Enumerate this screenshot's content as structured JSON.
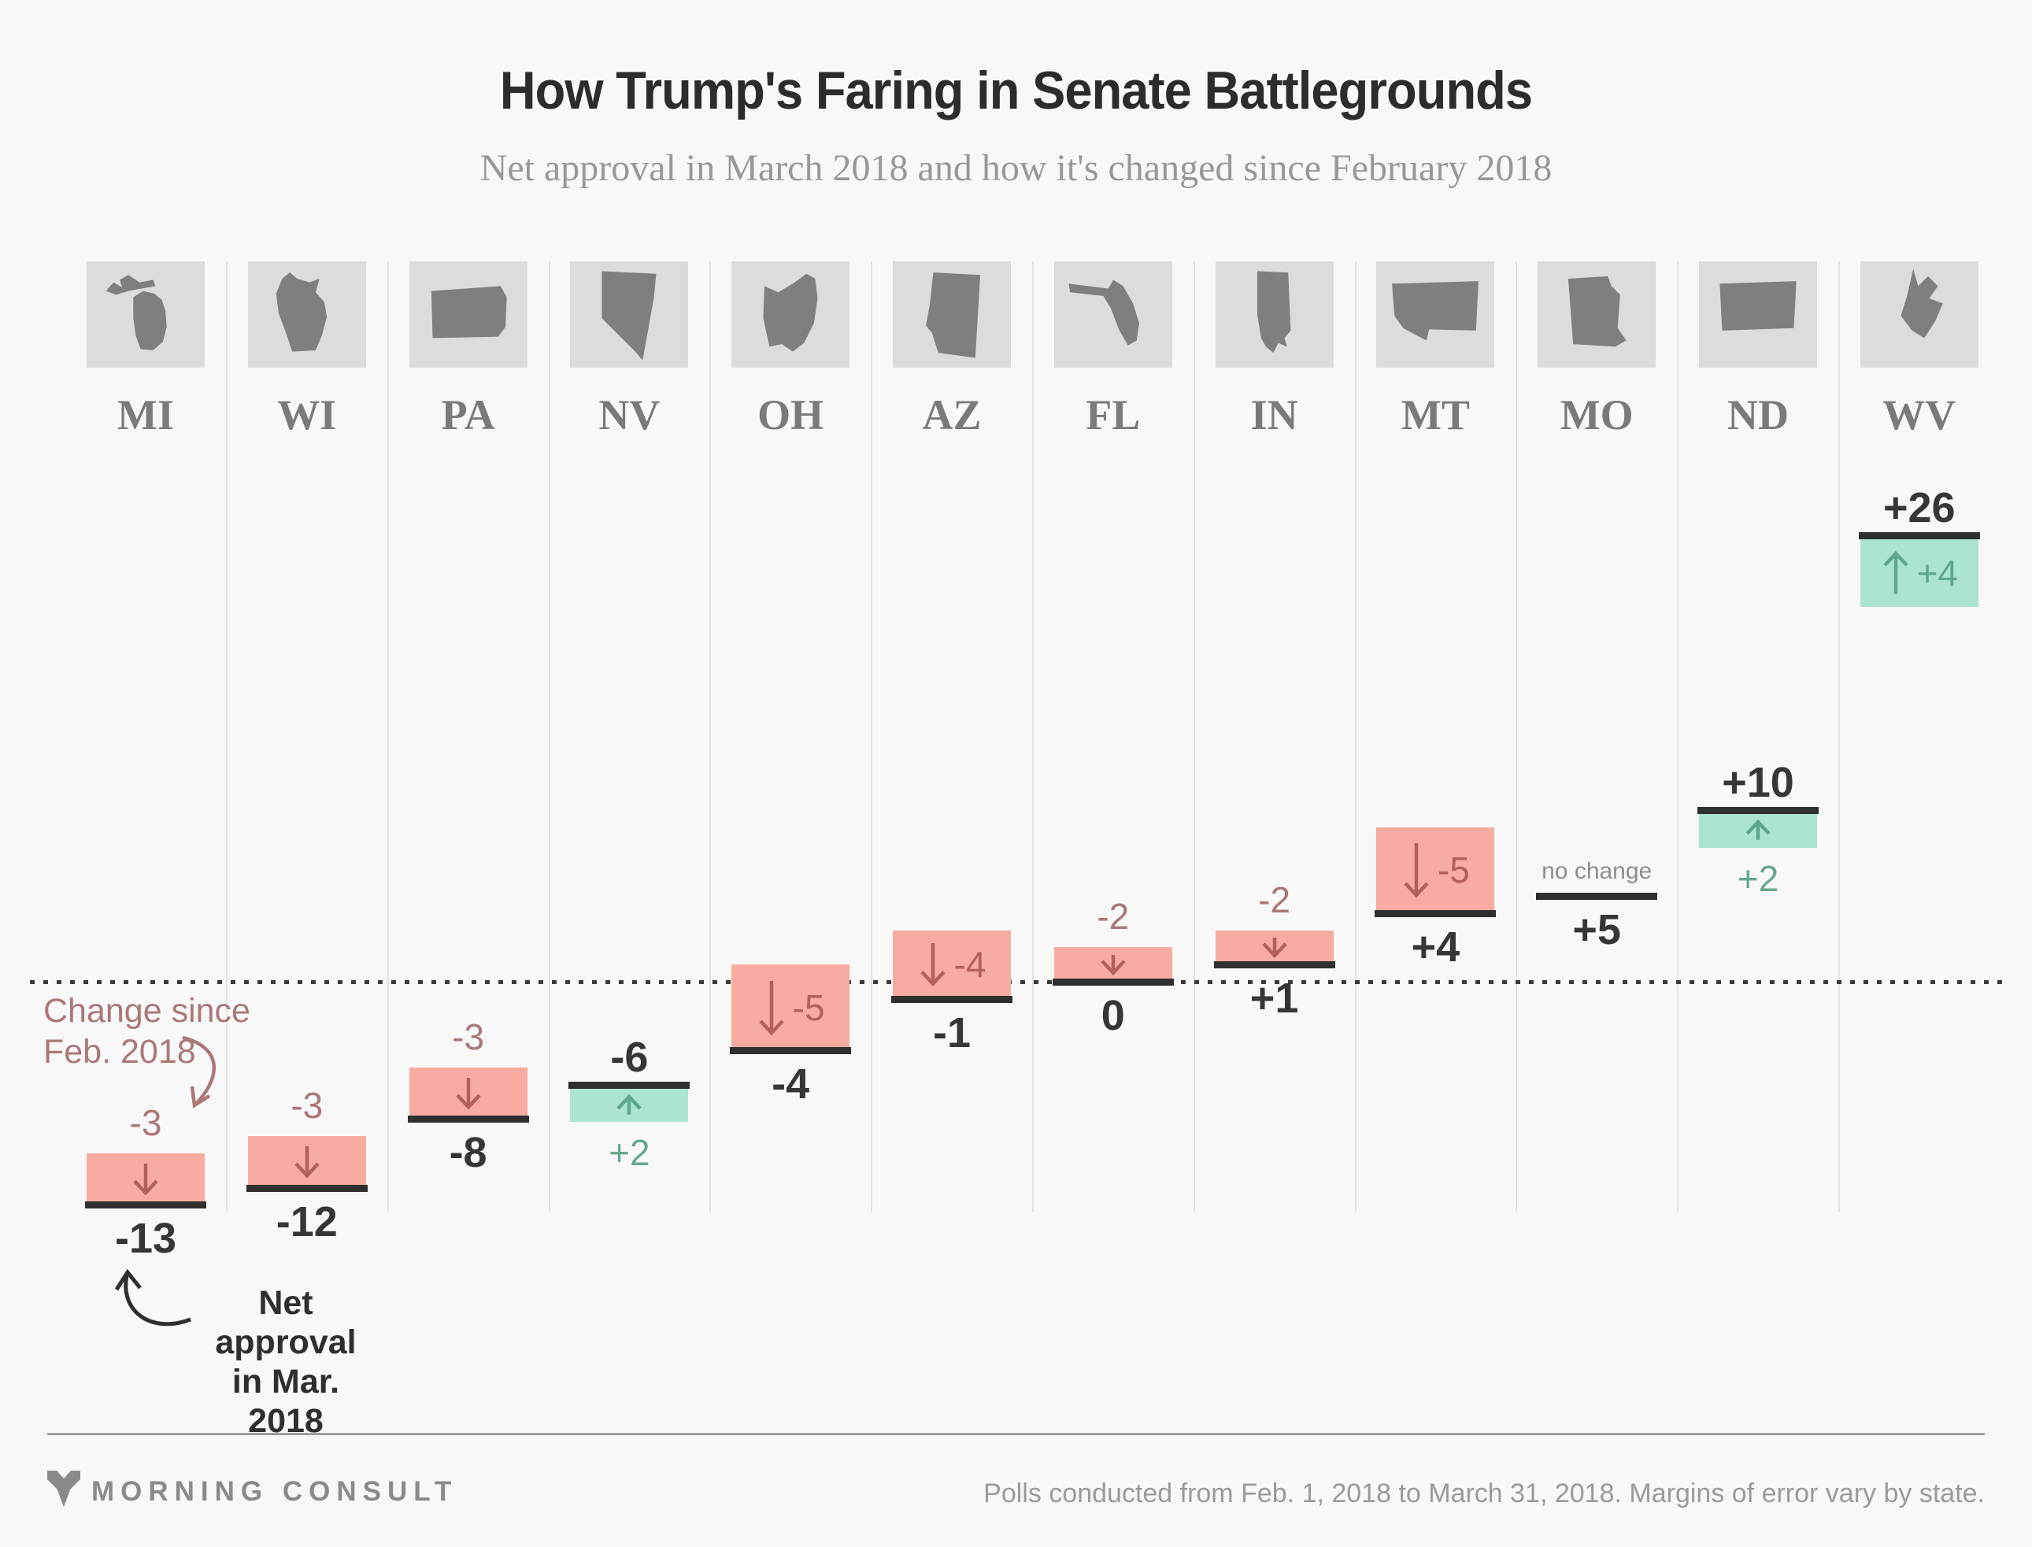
{
  "title": "How Trump's Faring in Senate Battlegrounds",
  "subtitle": "Net approval in March 2018 and how it's changed since February 2018",
  "annotations": {
    "change_line1": "Change since",
    "change_line2": "Feb. 2018",
    "net_line1": "Net approval",
    "net_line2": "in Mar. 2018"
  },
  "footer": {
    "brand": "MORNING CONSULT",
    "source": "Polls conducted from Feb. 1, 2018 to March 31, 2018. Margins of error vary by state."
  },
  "colors": {
    "background": "#f8f8f8",
    "negative_fill": "#f8aba0",
    "negative_accent": "#b4605a",
    "negative_label": "#ab7878",
    "positive_fill": "#abe4d0",
    "positive_accent": "#5fa78b",
    "net_line": "#2f2f2f",
    "net_text": "#363636",
    "muted_gray": "#8e8e8e"
  },
  "chart_data": {
    "type": "bar",
    "title": "How Trump's Faring in Senate Battlegrounds",
    "subtitle": "Net approval in March 2018 and how it's changed since February 2018",
    "categories": [
      "MI",
      "WI",
      "PA",
      "NV",
      "OH",
      "AZ",
      "FL",
      "IN",
      "MT",
      "MO",
      "ND",
      "WV"
    ],
    "series": [
      {
        "name": "Net approval in Mar. 2018",
        "values": [
          -13,
          -12,
          -8,
          -6,
          -4,
          -1,
          0,
          1,
          4,
          5,
          10,
          26
        ]
      },
      {
        "name": "Change since Feb. 2018",
        "values": [
          -3,
          -3,
          -3,
          2,
          -5,
          -4,
          -2,
          -2,
          -5,
          0,
          2,
          4
        ]
      }
    ],
    "ylim": [
      -16,
      30
    ],
    "zero_line": "dotted",
    "legend_position": "annotated-on-first-bar",
    "states": [
      {
        "abbr": "MI",
        "icon": "michigan-outline",
        "net": -13,
        "change": -3,
        "net_display": "-13",
        "change_display": "-3",
        "direction": "down",
        "change_placement": "above"
      },
      {
        "abbr": "WI",
        "icon": "wisconsin-outline",
        "net": -12,
        "change": -3,
        "net_display": "-12",
        "change_display": "-3",
        "direction": "down",
        "change_placement": "above"
      },
      {
        "abbr": "PA",
        "icon": "pennsylvania-outline",
        "net": -8,
        "change": -3,
        "net_display": "-8",
        "change_display": "-3",
        "direction": "down",
        "change_placement": "above"
      },
      {
        "abbr": "NV",
        "icon": "nevada-outline",
        "net": -6,
        "change": 2,
        "net_display": "-6",
        "change_display": "+2",
        "direction": "up",
        "change_placement": "below"
      },
      {
        "abbr": "OH",
        "icon": "ohio-outline",
        "net": -4,
        "change": -5,
        "net_display": "-4",
        "change_display": "-5",
        "direction": "down",
        "change_placement": "inside"
      },
      {
        "abbr": "AZ",
        "icon": "arizona-outline",
        "net": -1,
        "change": -4,
        "net_display": "-1",
        "change_display": "-4",
        "direction": "down",
        "change_placement": "inside"
      },
      {
        "abbr": "FL",
        "icon": "florida-outline",
        "net": 0,
        "change": -2,
        "net_display": "0",
        "change_display": "-2",
        "direction": "down",
        "change_placement": "above"
      },
      {
        "abbr": "IN",
        "icon": "indiana-outline",
        "net": 1,
        "change": -2,
        "net_display": "+1",
        "change_display": "-2",
        "direction": "down",
        "change_placement": "above"
      },
      {
        "abbr": "MT",
        "icon": "montana-outline",
        "net": 4,
        "change": -5,
        "net_display": "+4",
        "change_display": "-5",
        "direction": "down",
        "change_placement": "inside"
      },
      {
        "abbr": "MO",
        "icon": "missouri-outline",
        "net": 5,
        "change": 0,
        "net_display": "+5",
        "change_display": "no change",
        "direction": "none",
        "change_placement": "nochange"
      },
      {
        "abbr": "ND",
        "icon": "north-dakota-outline",
        "net": 10,
        "change": 2,
        "net_display": "+10",
        "change_display": "+2",
        "direction": "up",
        "change_placement": "below"
      },
      {
        "abbr": "WV",
        "icon": "west-virginia-outline",
        "net": 26,
        "change": 4,
        "net_display": "+26",
        "change_display": "+4",
        "direction": "up",
        "change_placement": "inside"
      }
    ]
  }
}
